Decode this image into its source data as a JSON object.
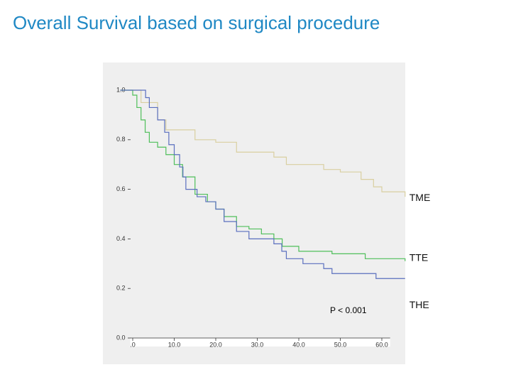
{
  "chart_data": {
    "type": "line",
    "title": "Overall Survival based on surgical procedure",
    "step": true,
    "xlim": [
      -4,
      66
    ],
    "ylim": [
      0,
      1.05
    ],
    "xticks": [
      {
        "value": 0,
        "label": ".0"
      },
      {
        "value": 10,
        "label": "10.0"
      },
      {
        "value": 20,
        "label": "20.0"
      },
      {
        "value": 30,
        "label": "30.0"
      },
      {
        "value": 40,
        "label": "40.0"
      },
      {
        "value": 50,
        "label": "50.0"
      },
      {
        "value": 60,
        "label": "60.0"
      }
    ],
    "yticks": [
      {
        "value": 0,
        "label": "0.0"
      },
      0.2,
      0.4,
      0.6,
      0.8,
      {
        "value": 1,
        "label": "1.0"
      }
    ],
    "series": [
      {
        "name": "TME",
        "color": "#d9cfa0",
        "x": [
          -3,
          0,
          2,
          6,
          8,
          15,
          20,
          25,
          34,
          37,
          46,
          50,
          55,
          58,
          60,
          65.6
        ],
        "values": [
          1.0,
          1.0,
          0.95,
          0.88,
          0.84,
          0.8,
          0.79,
          0.75,
          0.73,
          0.7,
          0.68,
          0.67,
          0.64,
          0.61,
          0.59,
          0.57
        ]
      },
      {
        "name": "TTE",
        "color": "#4fbf5a",
        "x": [
          -3,
          0,
          1,
          2,
          3,
          4,
          6,
          8,
          10,
          12,
          15,
          18,
          20,
          22,
          25,
          28,
          31,
          34,
          36,
          40,
          48,
          56,
          65.6
        ],
        "values": [
          1.0,
          0.98,
          0.93,
          0.88,
          0.83,
          0.79,
          0.77,
          0.74,
          0.7,
          0.65,
          0.58,
          0.55,
          0.52,
          0.49,
          0.45,
          0.44,
          0.42,
          0.4,
          0.37,
          0.35,
          0.34,
          0.32,
          0.31
        ]
      },
      {
        "name": "THE",
        "color": "#5a6fbf",
        "x": [
          -3,
          3.1,
          4,
          6,
          7.7,
          8.7,
          10,
          11.3,
          12.1,
          12.8,
          15.5,
          17.6,
          20,
          22,
          25,
          28,
          34,
          35.9,
          37,
          41,
          46,
          48,
          58.6,
          65.6
        ],
        "values": [
          1.0,
          0.97,
          0.93,
          0.88,
          0.83,
          0.78,
          0.74,
          0.69,
          0.65,
          0.6,
          0.57,
          0.55,
          0.52,
          0.47,
          0.43,
          0.4,
          0.38,
          0.35,
          0.32,
          0.3,
          0.28,
          0.26,
          0.24,
          0.24
        ]
      }
    ],
    "annotations": [
      "P < 0.001"
    ]
  }
}
